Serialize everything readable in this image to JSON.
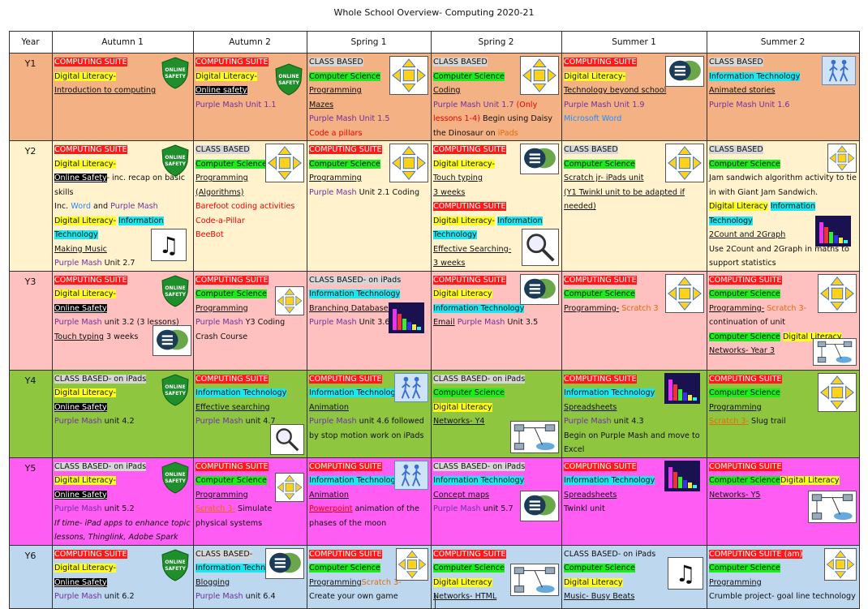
{
  "title": "Whole School Overview- Computing 2020-21",
  "headers": [
    "Year",
    "Autumn 1",
    "Autumn 2",
    "Spring 1",
    "Spring 2",
    "Summer 1",
    "Summer 2"
  ],
  "colors": {
    "Y1": "#f4b183",
    "Y2": "#fff2cc",
    "Y3": "#ffc0c0",
    "Y4": "#8fc640",
    "Y5": "#ff5cf4",
    "Y6": "#bdd7ee"
  },
  "icons": [
    "online-safety-shield-icon",
    "arrow-pad-icon",
    "speech-bubbles-icon",
    "bar-chart-icon",
    "music-note-icon",
    "magnifying-glass-icon",
    "walking-figures-icon",
    "network-icon"
  ],
  "rows": [
    {
      "year": "Y1",
      "cells": [
        {
          "lines": [
            "COMPUTING SUITE",
            "Digital Literacy-",
            "Introduction to computing"
          ]
        },
        {
          "lines": [
            "COMPUTING SUITE",
            "Digital Literacy-",
            "Online safety",
            "Purple Mash Unit 1.1"
          ]
        },
        {
          "lines": [
            "CLASS BASED",
            "Computer Science",
            "Programming",
            "Mazes",
            "Purple Mash Unit 1.5",
            "Code a pillars"
          ]
        },
        {
          "lines": [
            "CLASS BASED",
            "Computer Science",
            "Coding",
            "Purple Mash Unit 1.7",
            "(Only lessons 1-4)",
            "Begin using Daisy the Dinosaur on",
            "iPads"
          ]
        },
        {
          "lines": [
            "COMPUTING SUITE",
            "Digital Literacy-",
            "Technology beyond school",
            "Purple Mash Unit 1.9",
            "Microsoft Word"
          ]
        },
        {
          "lines": [
            "CLASS BASED",
            "Information Technology",
            "Animated stories",
            "Purple Mash Unit 1.6"
          ]
        }
      ]
    },
    {
      "year": "Y2",
      "cells": [
        {
          "lines": [
            "COMPUTING SUITE",
            "Digital Literacy-",
            "Online Safety",
            "- inc. recap on basic skills",
            "Inc.",
            "Word",
            "and",
            "Purple Mash",
            "Digital Literacy-",
            "Information Technology",
            "Making Music",
            "Purple Mash",
            "Unit 2.7"
          ]
        },
        {
          "lines": [
            "CLASS BASED",
            "Computer Science",
            "Programming",
            "(Algorithms)",
            "Barefoot coding activities",
            "Code-a-Pillar",
            "BeeBot"
          ]
        },
        {
          "lines": [
            "COMPUTING SUITE",
            "Computer Science",
            "Programming",
            "Purple Mash",
            "Unit 2.1 Coding"
          ]
        },
        {
          "lines": [
            "COMPUTING SUITE",
            "Digital Literacy-",
            "Touch typing",
            "3 weeks",
            "COMPUTING SUITE",
            "Digital Literacy-",
            "Information Technology",
            "Effective Searching-",
            "3 weeks"
          ]
        },
        {
          "lines": [
            "CLASS BASED",
            "Computer Science",
            "Scratch jr- iPads unit",
            "(Y1 Twinkl unit to be adapted if needed)"
          ]
        },
        {
          "lines": [
            "CLASS BASED",
            "Computer Science",
            "Jam sandwich algorithm activity to tie in with Giant Jam Sandwich.",
            "Digital Literacy",
            "Information Technology",
            "2Count and 2Graph",
            "Use 2Count and 2Graph in maths to support statistics"
          ]
        }
      ]
    },
    {
      "year": "Y3",
      "cells": [
        {
          "lines": [
            "COMPUTING SUITE",
            "Digital Literacy-",
            "Online Safety",
            "Purple Mash",
            "unit 3.2 (3 lessons)",
            "Touch typing",
            "3 weeks"
          ]
        },
        {
          "lines": [
            "COMPUTING SUITE",
            "Computer Science",
            "Programming",
            "Purple Mash",
            "Y3 Coding Crash Course"
          ]
        },
        {
          "lines": [
            "CLASS BASED- on iPads",
            "Information Technology",
            "Branching Databases",
            "Purple Mash",
            "Unit 3.6"
          ]
        },
        {
          "lines": [
            "COMPUTING SUITE",
            "Digital Literacy",
            "Information Technology",
            "Email",
            "Purple Mash",
            "Unit 3.5"
          ]
        },
        {
          "lines": [
            "COMPUTING SUITE",
            "Computer Science",
            "Programming-",
            "Scratch 3"
          ]
        },
        {
          "lines": [
            "COMPUTING SUITE",
            "Computer Science",
            "Programming-",
            "Scratch 3-",
            "continuation of unit",
            "Computer Science",
            "Digital Literacy",
            "Networks- Year 3"
          ]
        }
      ]
    },
    {
      "year": "Y4",
      "cells": [
        {
          "lines": [
            "CLASS BASED- on iPads",
            "Digital Literacy-",
            "Online Safety",
            "Purple Mash",
            "unit 4.2"
          ]
        },
        {
          "lines": [
            "COMPUTING SUITE",
            "Information Technology",
            "Effective searching",
            "Purple Mash",
            "unit 4.7"
          ]
        },
        {
          "lines": [
            "COMPUTING SUITE",
            "Information Technology",
            "Animation",
            "Purple Mash",
            "unit 4.6 followed by stop motion work on iPads"
          ]
        },
        {
          "lines": [
            "CLASS BASED- on iPads",
            "Computer Science",
            "Digital Literacy",
            "Networks- Y4"
          ]
        },
        {
          "lines": [
            "COMPUTING SUITE",
            "Information Technology",
            "Spreadsheets",
            "Purple Mash",
            "unit 4.3",
            "Begin on Purple Mash and move to Excel"
          ]
        },
        {
          "lines": [
            "COMPUTING SUITE",
            "Computer Science",
            "Programming",
            "Scratch 3-",
            "Slug trail"
          ]
        }
      ]
    },
    {
      "year": "Y5",
      "cells": [
        {
          "lines": [
            "CLASS BASED- on iPads",
            "Digital Literacy-",
            "Online Safety",
            "Purple Mash",
            "unit 5.2",
            "If time- iPad apps to enhance topic lessons, Thinglink, Adobe Spark"
          ]
        },
        {
          "lines": [
            "COMPUTING SUITE",
            "Computer Science",
            "Programming",
            "Scratch 3-",
            "Simulate physical systems"
          ]
        },
        {
          "lines": [
            "COMPUTING SUITE",
            "Information Technology",
            "Animation",
            "Powerpoint",
            "animation of the phases of the moon"
          ]
        },
        {
          "lines": [
            "CLASS BASED- on iPads",
            "Information Technology",
            "Concept maps",
            "Purple Mash",
            "unit 5.7"
          ]
        },
        {
          "lines": [
            "COMPUTING SUITE",
            "Information Technology",
            "Spreadsheets",
            "Twinkl unit"
          ]
        },
        {
          "lines": [
            "COMPUTING SUITE",
            "Computer Science",
            "Digital Literacy",
            "Networks- Y5"
          ]
        }
      ]
    },
    {
      "year": "Y6",
      "cells": [
        {
          "lines": [
            "COMPUTING SUITE",
            "Digital Literacy-",
            "Online Safety",
            "Purple Mash",
            "unit 6.2"
          ]
        },
        {
          "lines": [
            "CLASS BASED-",
            "Information Technology",
            "Blogging",
            "Purple Mash",
            "unit 6.4"
          ]
        },
        {
          "lines": [
            "COMPUTING SUITE",
            "Computer Science",
            "Programming",
            "Scratch 3-",
            "Create your own game"
          ]
        },
        {
          "lines": [
            "COMPUTING SUITE",
            "Computer Science",
            "Digital Literacy",
            "Networks- HTML"
          ]
        },
        {
          "lines": [
            "CLASS BASED- on iPads",
            "Computer Science",
            "Digital Literacy",
            "Music- Busy Beats"
          ]
        },
        {
          "lines": [
            "COMPUTING SUITE (am)",
            "Computer Science",
            "Programming",
            "Crumble project- goal line technology"
          ]
        }
      ]
    }
  ]
}
